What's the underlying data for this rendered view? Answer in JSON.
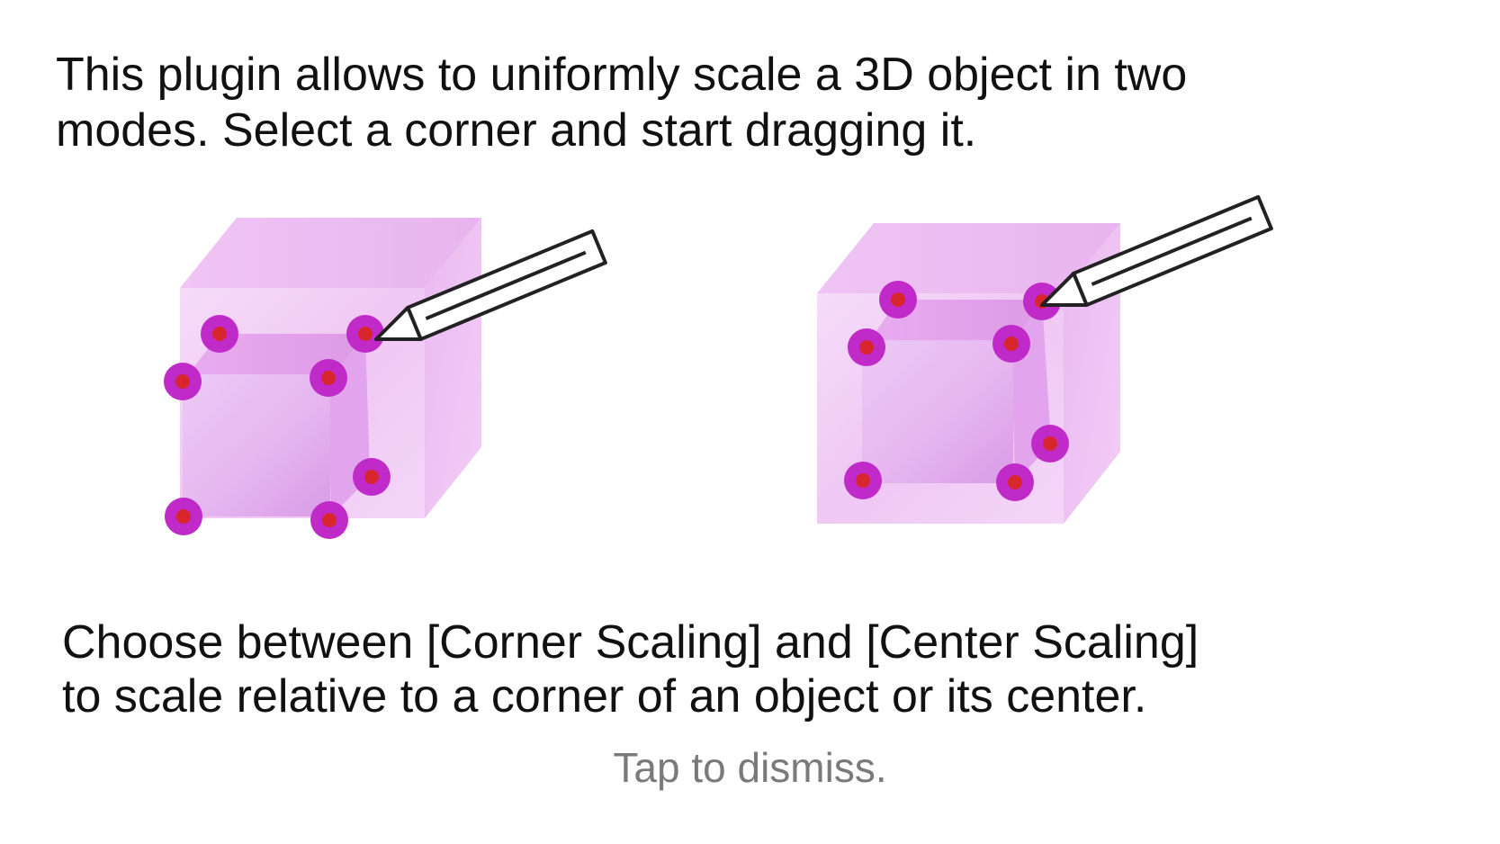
{
  "intro": {
    "line1": "This plugin allows to uniformly scale a 3D object in two",
    "line2": "modes. Select a corner and start dragging it."
  },
  "modes": {
    "line1": "Choose between [Corner Scaling] and [Center Scaling]",
    "line2": "to scale relative to a corner of an object or its center."
  },
  "dismiss_label": "Tap to dismiss.",
  "icons": {
    "corner_cube": "corner-scaling-cube-icon",
    "center_cube": "center-scaling-cube-icon",
    "pencil": "pencil-icon"
  },
  "colors": {
    "cube_light": "#f3d6f7",
    "cube_mid": "#e7b2ef",
    "handle_outer": "#c02ac8",
    "handle_inner": "#d8262e",
    "dismiss_text": "#7a7a7a"
  }
}
